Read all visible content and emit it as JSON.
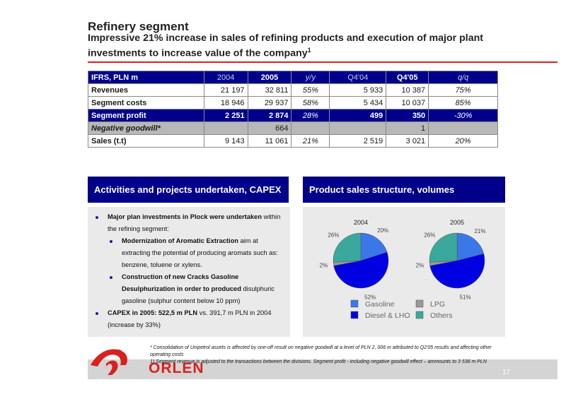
{
  "header": {
    "title": "Refinery segment",
    "subtitle": "Impressive 21% increase in sales of refining products and execution of major plant investments to increase value of the company",
    "subtitle_footnote_mark": "1"
  },
  "table": {
    "columns": [
      "IFRS, PLN m",
      "2004",
      "2005",
      "y/y",
      "Q4'04",
      "Q4'05",
      "q/q"
    ],
    "rows": [
      {
        "label": "Revenues",
        "v2004": "21 197",
        "v2005": "32 811",
        "yy": "55%",
        "q404": "5 933",
        "q405": "10 387",
        "qq": "75%"
      },
      {
        "label": "Segment costs",
        "v2004": "18 946",
        "v2005": "29 937",
        "yy": "58%",
        "q404": "5 434",
        "q405": "10 037",
        "qq": "85%"
      },
      {
        "label": "Segment profit",
        "v2004": "2 251",
        "v2005": "2 874",
        "yy": "28%",
        "q404": "499",
        "q405": "350",
        "qq": "-30%"
      },
      {
        "label": "Negative goodwill*",
        "v2004": "",
        "v2005": "664",
        "yy": "",
        "q404": "",
        "q405": "1",
        "qq": ""
      },
      {
        "label": "Sales (t.t)",
        "v2004": "9 143",
        "v2005": "11 061",
        "yy": "21%",
        "q404": "2 519",
        "q405": "3 021",
        "qq": "20%"
      }
    ]
  },
  "activities": {
    "heading": "Activities and projects undertaken, CAPEX",
    "item1_bold": "Major plan investments in Plock were undertaken",
    "item1_rest": " within the refining segment:",
    "sub1_bold": "Modernization of Aromatic Extraction",
    "sub1_rest": " aim at extracting the potential of producing aromats such as: benzene, toluene or xylens.",
    "sub2_bold": "Construction of new Cracks Gasoline Desulphurization in order to produced",
    "sub2_rest": " disulphuric gasoline (sulphur content below 10 ppm)",
    "item2_bold": "CAPEX in 2005: 522,5 m PLN",
    "item2_rest": " vs. 391,7 m PLN  in 2004 (increase by 33%)"
  },
  "products": {
    "heading": "Product sales structure, volumes"
  },
  "chart_data": {
    "type": "pie",
    "charts": [
      {
        "title": "2004",
        "slices": [
          {
            "label": "Gasoline",
            "value": 20,
            "display": "20%"
          },
          {
            "label": "Diesel & LHO",
            "value": 52,
            "display": "52%"
          },
          {
            "label": "LPG",
            "value": 2,
            "display": "2%"
          },
          {
            "label": "Others",
            "value": 26,
            "display": "26%"
          }
        ]
      },
      {
        "title": "2005",
        "slices": [
          {
            "label": "Gasoline",
            "value": 21,
            "display": "21%"
          },
          {
            "label": "Diesel & LHO",
            "value": 51,
            "display": "51%"
          },
          {
            "label": "LPG",
            "value": 2,
            "display": "2%"
          },
          {
            "label": "Others",
            "value": 26,
            "display": "26%"
          }
        ]
      }
    ],
    "legend": [
      {
        "label": "Gasoline",
        "color": "#3a78e8"
      },
      {
        "label": "LPG",
        "color": "#9a9a9a"
      },
      {
        "label": "Diesel & LHO",
        "color": "#0000e0"
      },
      {
        "label": "Others",
        "color": "#3aa89c"
      }
    ],
    "legend_position": "bottom"
  },
  "footnotes": {
    "star": "* Consolidation of Unipetrol assets is affected by one-off result on negative goodwill at a level of PLN 2, 006 m attributed to Q2'05 results and affecting other operating costs",
    "one": "1) Segment revenue is adjusted to the transactions between the divisions. Segment profit - including negative goodwill effect – ammounts to 3 538 m PLN"
  },
  "footer": {
    "logo_text": "ORLEN",
    "page_number": "17"
  },
  "colors": {
    "accent_red": "#d9201f",
    "navy": "#00008b",
    "panel_gray": "#eaeaea"
  }
}
